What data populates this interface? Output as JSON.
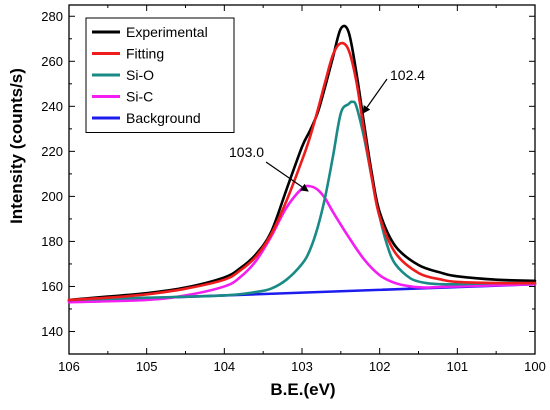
{
  "chart_data": {
    "type": "line",
    "xlabel": "B.E.(eV)",
    "ylabel": "Intensity (counts/s)",
    "xlim": [
      106,
      100
    ],
    "ylim": [
      130,
      285
    ],
    "x_reversed": true,
    "grid": false,
    "legend_position": "top-left",
    "x_ticks": [
      106,
      105,
      104,
      103,
      102,
      101,
      100
    ],
    "y_ticks": [
      140,
      160,
      180,
      200,
      220,
      240,
      260,
      280
    ],
    "series": [
      {
        "name": "Experimental",
        "color": "#000000",
        "x": [
          106,
          105.5,
          105,
          104.5,
          104,
          103.8,
          103.6,
          103.4,
          103.2,
          103.0,
          102.9,
          102.8,
          102.7,
          102.6,
          102.5,
          102.4,
          102.3,
          102.2,
          102.1,
          102.0,
          101.8,
          101.5,
          101.2,
          101.0,
          100.5,
          100
        ],
        "y": [
          154,
          155.5,
          157,
          159.5,
          164,
          168,
          174,
          184,
          203,
          222,
          229,
          237,
          249,
          262,
          274.5,
          273,
          255,
          232,
          210,
          193,
          178,
          169.5,
          166,
          164.5,
          163,
          162.5
        ]
      },
      {
        "name": "Fitting",
        "color": "#ee1c1c",
        "x": [
          106,
          105.5,
          105,
          104.5,
          104,
          103.8,
          103.6,
          103.4,
          103.2,
          103.0,
          102.9,
          102.8,
          102.7,
          102.6,
          102.5,
          102.4,
          102.3,
          102.2,
          102.1,
          102.0,
          101.8,
          101.5,
          101.2,
          101.0,
          100.5,
          100
        ],
        "y": [
          154,
          155,
          156.5,
          159,
          163,
          167,
          173,
          183,
          198,
          216,
          226,
          238,
          251,
          263,
          268,
          265,
          251,
          229,
          208,
          191,
          175,
          166,
          163,
          162,
          161.5,
          161.5
        ]
      },
      {
        "name": "Si-O",
        "color": "#1a8a86",
        "x": [
          106,
          105,
          104,
          103.6,
          103.4,
          103.2,
          103.0,
          102.9,
          102.8,
          102.7,
          102.6,
          102.5,
          102.4,
          102.35,
          102.3,
          102.2,
          102.1,
          102.0,
          101.9,
          101.8,
          101.6,
          101.4,
          101.2,
          101.0,
          100.5,
          100
        ],
        "y": [
          154,
          155,
          156,
          157.5,
          159,
          163,
          170,
          176,
          186,
          200,
          218,
          237,
          241,
          242,
          240,
          226,
          208,
          191,
          178,
          170,
          163.5,
          161.5,
          161,
          161,
          161.5,
          161.5
        ]
      },
      {
        "name": "Si-C",
        "color": "#f21ef2",
        "x": [
          106,
          105,
          104.5,
          104,
          103.8,
          103.6,
          103.4,
          103.2,
          103.0,
          102.9,
          102.8,
          102.7,
          102.6,
          102.4,
          102.2,
          102.0,
          101.8,
          101.6,
          101.4,
          101.2,
          101.0,
          100.5,
          100
        ],
        "y": [
          153,
          154,
          156,
          160,
          164,
          171,
          182,
          195,
          203.5,
          204.5,
          203,
          199,
          193,
          182,
          172,
          165,
          161.5,
          160,
          159.5,
          159.8,
          160,
          160.5,
          161
        ]
      },
      {
        "name": "Background",
        "color": "#1c1cee",
        "x": [
          106,
          100
        ],
        "y": [
          153.5,
          161
        ]
      }
    ],
    "annotations": [
      {
        "text": "103.0"
      },
      {
        "text": "102.4"
      }
    ]
  }
}
